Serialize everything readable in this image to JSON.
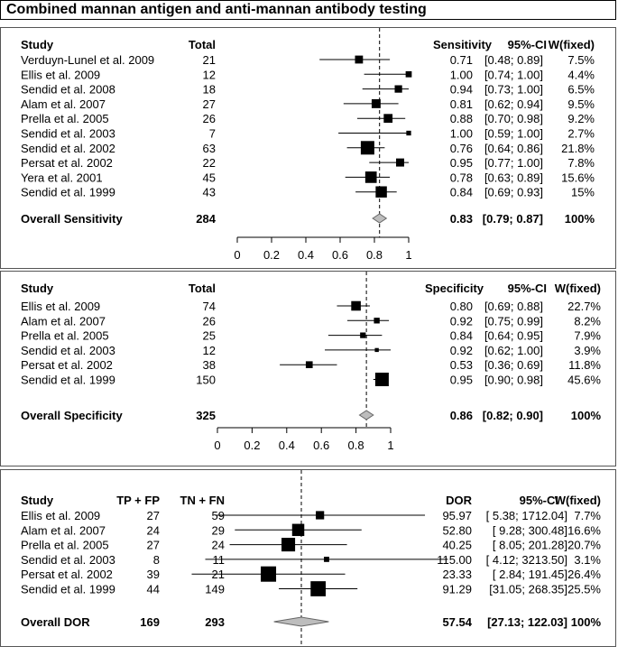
{
  "title": "Combined mannan antigen and anti-mannan antibody testing",
  "chart_data": [
    {
      "type": "forest",
      "metric": "sensitivity",
      "headers": {
        "study": "Study",
        "total": "Total",
        "estimate": "Sensitivity",
        "ci": "95%-CI",
        "weight": "W(fixed)"
      },
      "studies": [
        {
          "name": "Verduyn-Lunel et al. 2009",
          "total": "21",
          "est": 0.71,
          "lo": 0.48,
          "hi": 0.89,
          "est_text": "0.71",
          "ci_text": "[0.48; 0.89]",
          "weight_text": "7.5%",
          "weight": 7.5
        },
        {
          "name": "Ellis et al. 2009",
          "total": "12",
          "est": 1.0,
          "lo": 0.74,
          "hi": 1.0,
          "est_text": "1.00",
          "ci_text": "[0.74; 1.00]",
          "weight_text": "4.4%",
          "weight": 4.4
        },
        {
          "name": "Sendid et al. 2008",
          "total": "18",
          "est": 0.94,
          "lo": 0.73,
          "hi": 1.0,
          "est_text": "0.94",
          "ci_text": "[0.73; 1.00]",
          "weight_text": "6.5%",
          "weight": 6.5
        },
        {
          "name": "Alam et al. 2007",
          "total": "27",
          "est": 0.81,
          "lo": 0.62,
          "hi": 0.94,
          "est_text": "0.81",
          "ci_text": "[0.62; 0.94]",
          "weight_text": "9.5%",
          "weight": 9.5
        },
        {
          "name": "Prella et al. 2005",
          "total": "26",
          "est": 0.88,
          "lo": 0.7,
          "hi": 0.98,
          "est_text": "0.88",
          "ci_text": "[0.70; 0.98]",
          "weight_text": "9.2%",
          "weight": 9.2
        },
        {
          "name": "Sendid et al. 2003",
          "total": "7",
          "est": 1.0,
          "lo": 0.59,
          "hi": 1.0,
          "est_text": "1.00",
          "ci_text": "[0.59; 1.00]",
          "weight_text": "2.7%",
          "weight": 2.7
        },
        {
          "name": "Sendid et al. 2002",
          "total": "63",
          "est": 0.76,
          "lo": 0.64,
          "hi": 0.86,
          "est_text": "0.76",
          "ci_text": "[0.64; 0.86]",
          "weight_text": "21.8%",
          "weight": 21.8
        },
        {
          "name": "Persat et al. 2002",
          "total": "22",
          "est": 0.95,
          "lo": 0.77,
          "hi": 1.0,
          "est_text": "0.95",
          "ci_text": "[0.77; 1.00]",
          "weight_text": "7.8%",
          "weight": 7.8
        },
        {
          "name": "Yera et al. 2001",
          "total": "45",
          "est": 0.78,
          "lo": 0.63,
          "hi": 0.89,
          "est_text": "0.78",
          "ci_text": "[0.63; 0.89]",
          "weight_text": "15.6%",
          "weight": 15.6
        },
        {
          "name": "Sendid et al. 1999",
          "total": "43",
          "est": 0.84,
          "lo": 0.69,
          "hi": 0.93,
          "est_text": "0.84",
          "ci_text": "[0.69; 0.93]",
          "weight_text": "15%",
          "weight": 15
        }
      ],
      "overall": {
        "label": "Overall Sensitivity",
        "total": "284",
        "est": 0.83,
        "lo": 0.79,
        "hi": 0.87,
        "est_text": "0.83",
        "ci_text": "[0.79; 0.87]",
        "weight_text": "100%"
      },
      "axis": {
        "min": 0,
        "max": 1,
        "ticks": [
          "0",
          "0.2",
          "0.4",
          "0.6",
          "0.8",
          "1"
        ]
      }
    },
    {
      "type": "forest",
      "metric": "specificity",
      "headers": {
        "study": "Study",
        "total": "Total",
        "estimate": "Specificity",
        "ci": "95%-CI",
        "weight": "W(fixed)"
      },
      "studies": [
        {
          "name": "Ellis et al. 2009",
          "total": "74",
          "est": 0.8,
          "lo": 0.69,
          "hi": 0.88,
          "est_text": "0.80",
          "ci_text": "[0.69; 0.88]",
          "weight_text": "22.7%",
          "weight": 22.7
        },
        {
          "name": "Alam et al. 2007",
          "total": "26",
          "est": 0.92,
          "lo": 0.75,
          "hi": 0.99,
          "est_text": "0.92",
          "ci_text": "[0.75; 0.99]",
          "weight_text": "8.2%",
          "weight": 8.2
        },
        {
          "name": "Prella et al. 2005",
          "total": "25",
          "est": 0.84,
          "lo": 0.64,
          "hi": 0.95,
          "est_text": "0.84",
          "ci_text": "[0.64; 0.95]",
          "weight_text": "7.9%",
          "weight": 7.9
        },
        {
          "name": "Sendid et al. 2003",
          "total": "12",
          "est": 0.92,
          "lo": 0.62,
          "hi": 1.0,
          "est_text": "0.92",
          "ci_text": "[0.62; 1.00]",
          "weight_text": "3.9%",
          "weight": 3.9
        },
        {
          "name": "Persat et al. 2002",
          "total": "38",
          "est": 0.53,
          "lo": 0.36,
          "hi": 0.69,
          "est_text": "0.53",
          "ci_text": "[0.36; 0.69]",
          "weight_text": "11.8%",
          "weight": 11.8
        },
        {
          "name": "Sendid et al. 1999",
          "total": "150",
          "est": 0.95,
          "lo": 0.9,
          "hi": 0.98,
          "est_text": "0.95",
          "ci_text": "[0.90; 0.98]",
          "weight_text": "45.6%",
          "weight": 45.6
        }
      ],
      "overall": {
        "label": "Overall Specificity",
        "total": "325",
        "est": 0.86,
        "lo": 0.82,
        "hi": 0.9,
        "est_text": "0.86",
        "ci_text": "[0.82; 0.90]",
        "weight_text": "100%"
      },
      "axis": {
        "min": 0,
        "max": 1,
        "ticks": [
          "0",
          "0.2",
          "0.4",
          "0.6",
          "0.8",
          "1"
        ]
      }
    },
    {
      "type": "forest",
      "metric": "DOR",
      "headers": {
        "study": "Study",
        "tpfp": "TP + FP",
        "tnfn": "TN + FN",
        "estimate": "DOR",
        "ci": "95%-CI",
        "weight": "W(fixed)"
      },
      "studies": [
        {
          "name": "Ellis et al. 2009",
          "tpfp": "27",
          "tnfn": "59",
          "est": 95.97,
          "lo": 5.38,
          "hi": 1712.04,
          "est_text": "95.97",
          "ci_text": "[ 5.38; 1712.04]",
          "weight_text": "7.7%",
          "weight": 7.7
        },
        {
          "name": "Alam et al. 2007",
          "tpfp": "24",
          "tnfn": "29",
          "est": 52.8,
          "lo": 9.28,
          "hi": 300.48,
          "est_text": "52.80",
          "ci_text": "[ 9.28; 300.48]",
          "weight_text": "16.6%",
          "weight": 16.6
        },
        {
          "name": "Prella et al. 2005",
          "tpfp": "27",
          "tnfn": "24",
          "est": 40.25,
          "lo": 8.05,
          "hi": 201.28,
          "est_text": "40.25",
          "ci_text": "[ 8.05; 201.28]",
          "weight_text": "20.7%",
          "weight": 20.7
        },
        {
          "name": "Sendid et al. 2003",
          "tpfp": "8",
          "tnfn": "11",
          "est": 115.0,
          "lo": 4.12,
          "hi": 3213.5,
          "est_text": "115.00",
          "ci_text": "[ 4.12; 3213.50]",
          "weight_text": "3.1%",
          "weight": 3.1
        },
        {
          "name": "Persat et al. 2002",
          "tpfp": "39",
          "tnfn": "21",
          "est": 23.33,
          "lo": 2.84,
          "hi": 191.45,
          "est_text": "23.33",
          "ci_text": "[ 2.84; 191.45]",
          "weight_text": "26.4%",
          "weight": 26.4
        },
        {
          "name": "Sendid et al. 1999",
          "tpfp": "44",
          "tnfn": "149",
          "est": 91.29,
          "lo": 31.05,
          "hi": 268.35,
          "est_text": "91.29",
          "ci_text": "[31.05; 268.35]",
          "weight_text": "25.5%",
          "weight": 25.5
        }
      ],
      "overall": {
        "label": "Overall DOR",
        "tpfp": "169",
        "tnfn": "293",
        "est": 57.54,
        "lo": 27.13,
        "hi": 122.03,
        "est_text": "57.54",
        "ci_text": "[27.13; 122.03]",
        "weight_text": "100%"
      },
      "axis": {
        "scale": "log"
      }
    }
  ]
}
